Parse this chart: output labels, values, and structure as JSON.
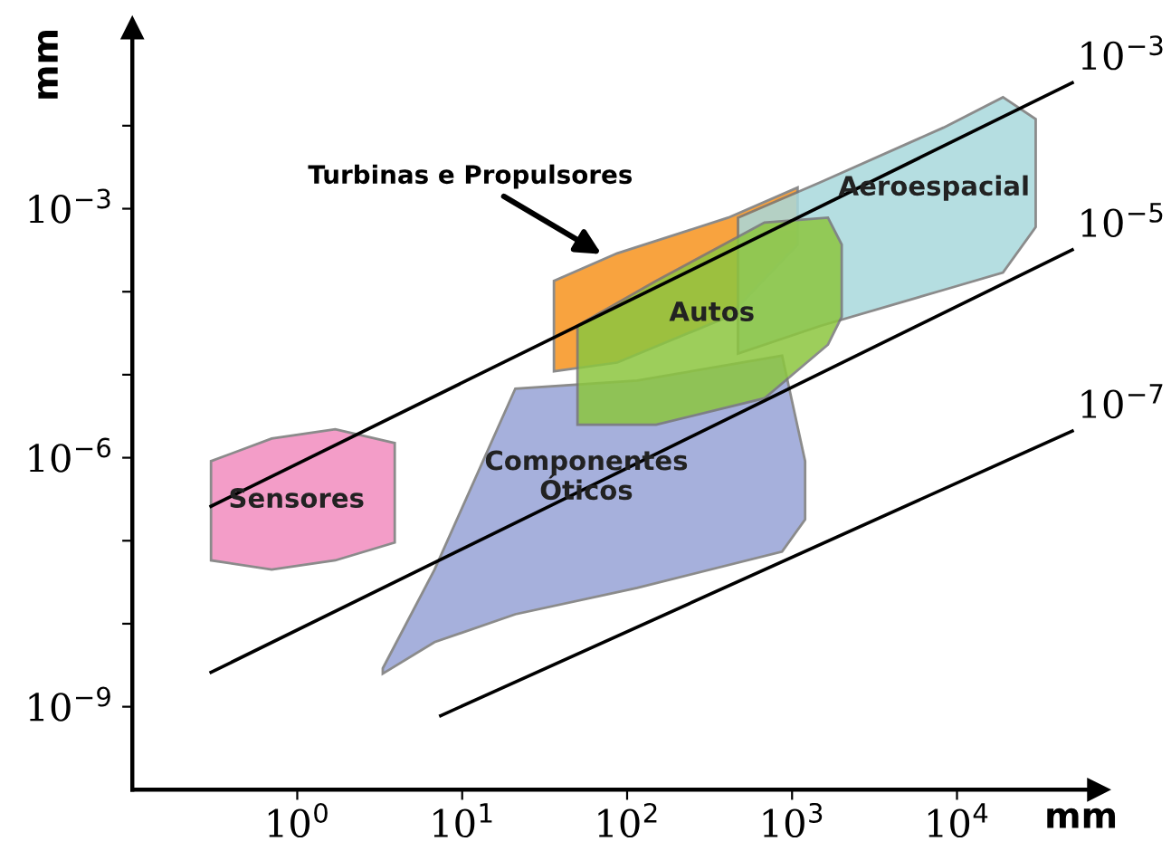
{
  "chart_data": {
    "type": "area",
    "log": "xy",
    "xlabel": "mm",
    "ylabel": "mm",
    "xlim": [
      0.1,
      72000
    ],
    "ylim": [
      1e-10,
      0.15
    ],
    "xticks": [
      {
        "value": 1,
        "label": "10$^{0}$"
      },
      {
        "value": 10,
        "label": "10$^{1}$"
      },
      {
        "value": 100,
        "label": "10$^{2}$"
      },
      {
        "value": 1000,
        "label": "10$^{3}$"
      },
      {
        "value": 10000,
        "label": "10$^{4}$"
      }
    ],
    "yticks": [
      {
        "value": 1e-09,
        "label": "10$^{−9}$"
      },
      {
        "value": 1e-08,
        "label": null
      },
      {
        "value": 1e-07,
        "label": null
      },
      {
        "value": 1e-06,
        "label": "10$^{−6}$"
      },
      {
        "value": 1e-05,
        "label": null
      },
      {
        "value": 0.0001,
        "label": null
      },
      {
        "value": 0.001,
        "label": "10$^{−3}$"
      },
      {
        "value": 0.01,
        "label": null
      }
    ],
    "grid": false,
    "series": [
      {
        "color": "#f28cbf",
        "x": [
          0.3,
          0.7,
          1.7,
          3.9,
          3.9,
          1.7,
          0.7,
          0.3
        ],
        "values": [
          9.1e-07,
          1.7e-06,
          2.2e-06,
          1.5e-06,
          9.5e-08,
          5.8e-08,
          4.5e-08,
          5.8e-08
        ]
      },
      {
        "color": "#97a3d6",
        "x": [
          3.3,
          6.8,
          21,
          115,
          870,
          1200,
          1200,
          870,
          115,
          21,
          6.8,
          3.3
        ],
        "values": [
          2.9e-09,
          4.5e-08,
          6.8e-06,
          8.5e-06,
          1.7e-05,
          9.1e-07,
          1.8e-07,
          7.4e-08,
          2.7e-08,
          1.3e-08,
          6e-09,
          2.5e-09
        ]
      },
      {
        "color": "#f7931e",
        "x": [
          36,
          87,
          410,
          1080,
          1080,
          410,
          87,
          36
        ],
        "values": [
          0.000135,
          0.00029,
          0.00078,
          0.0018,
          0.00037,
          5e-05,
          1.4e-05,
          1.1e-05
        ]
      },
      {
        "color": "#a9d9dc",
        "x": [
          470,
          1500,
          8300,
          19000,
          30000,
          30000,
          19000,
          8300,
          1500,
          470
        ],
        "values": [
          0.00078,
          0.0021,
          0.0095,
          0.022,
          0.012,
          0.0006,
          0.00017,
          0.000105,
          3.9e-05,
          1.8e-05
        ]
      },
      {
        "color": "#8cc63f",
        "x": [
          50,
          150,
          680,
          1650,
          2000,
          2000,
          1650,
          680,
          150,
          50
        ],
        "values": [
          3.9e-05,
          0.000135,
          0.00068,
          0.00078,
          0.00037,
          5e-05,
          2.3e-05,
          5.2e-06,
          2.5e-06,
          2.5e-06
        ]
      },
      {
        "type": "line",
        "color": "#000000",
        "x": [
          0.3,
          50000
        ],
        "values": [
          2.6e-07,
          0.033
        ]
      },
      {
        "type": "line",
        "color": "#000000",
        "x": [
          0.3,
          50000
        ],
        "values": [
          2.6e-09,
          0.00032
        ]
      },
      {
        "type": "line",
        "color": "#000000",
        "x": [
          7.4,
          50000
        ],
        "values": [
          7.8e-10,
          2.1e-06
        ]
      }
    ],
    "annotations": [
      "10$^{−3}$",
      "10$^{−5}$",
      "10$^{−7}$",
      "Sensores",
      "Componentes\nÓticos",
      "Autos",
      "Aeroespacial",
      "Turbinas e Propulsores"
    ]
  }
}
